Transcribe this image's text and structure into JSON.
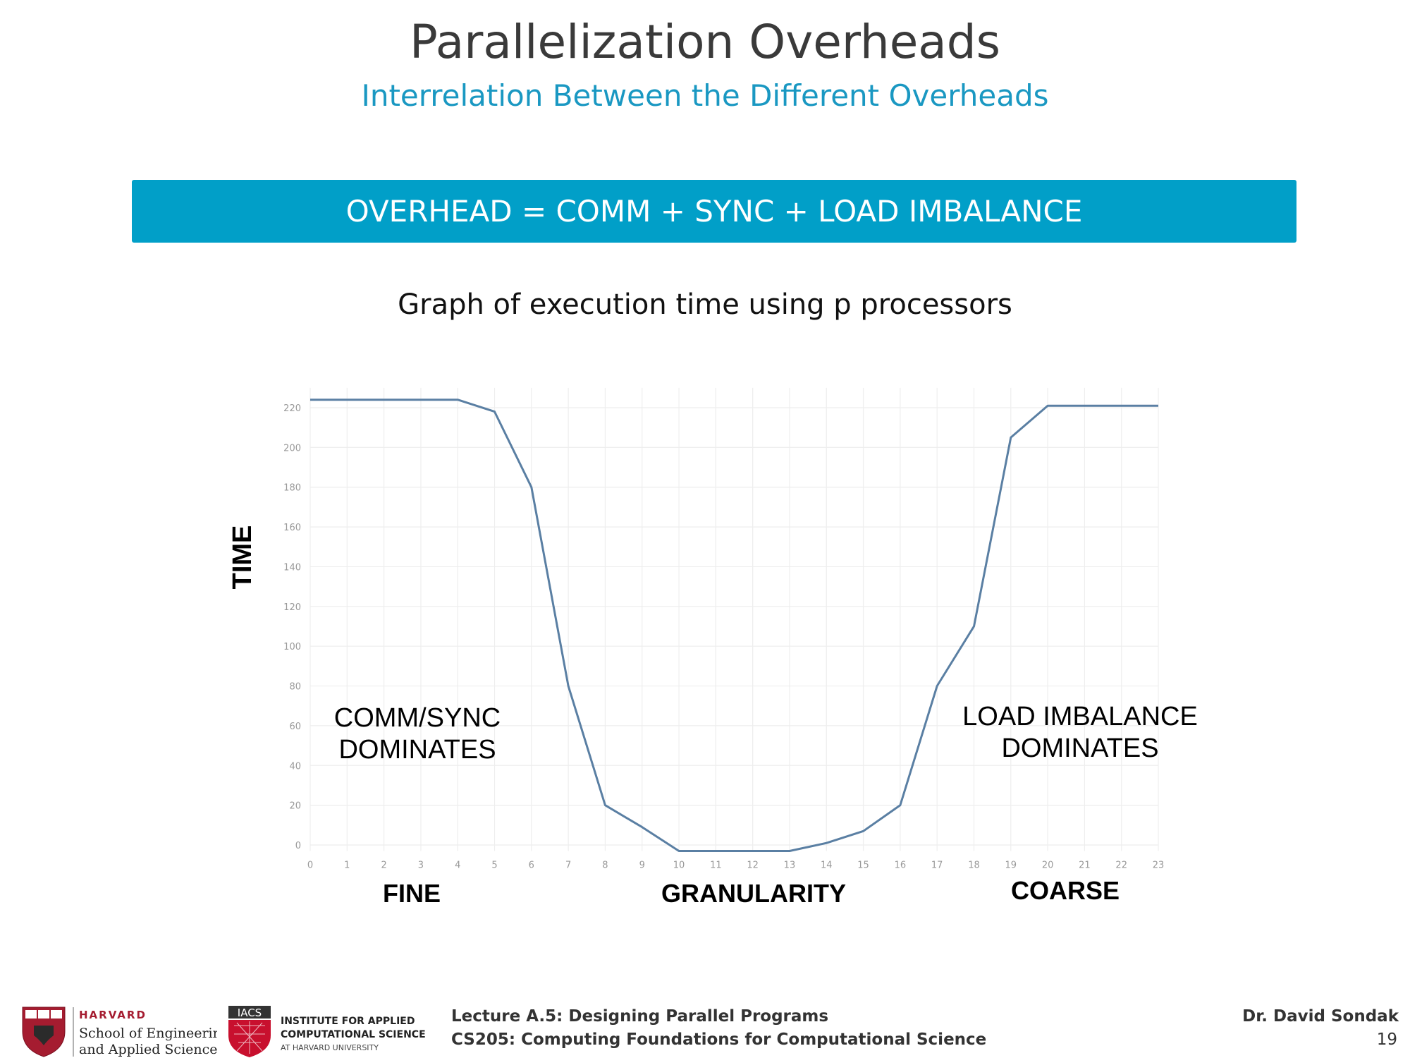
{
  "slide": {
    "title": "Parallelization Overheads",
    "subtitle": "Interrelation Between the Different Overheads",
    "formula": "OVERHEAD = COMM + SYNC + LOAD IMBALANCE",
    "graph_caption": "Graph of execution time using p processors"
  },
  "colors": {
    "title": "#3a3a3a",
    "accent": "#019fc8",
    "line": "#5a7fa3",
    "grid": "#eeeeee",
    "harvard_red": "#a51c30",
    "iacs_red": "#c8102e"
  },
  "chart_data": {
    "type": "line",
    "x": [
      0,
      1,
      2,
      3,
      4,
      5,
      6,
      7,
      8,
      9,
      10,
      11,
      12,
      13,
      14,
      15,
      16,
      17,
      18,
      19,
      20,
      21,
      22,
      23
    ],
    "series": [
      {
        "values": [
          224,
          224,
          224,
          224,
          224,
          218,
          180,
          80,
          20,
          9,
          -3,
          -3,
          -3,
          -3,
          1,
          7,
          20,
          80,
          110,
          205,
          221,
          221,
          221,
          221
        ]
      }
    ],
    "x_ticks": [
      0,
      1,
      2,
      3,
      4,
      5,
      6,
      7,
      8,
      9,
      10,
      11,
      12,
      13,
      14,
      15,
      16,
      17,
      18,
      19,
      20,
      21,
      22,
      23
    ],
    "y_ticks": [
      0,
      20,
      40,
      60,
      80,
      100,
      120,
      140,
      160,
      180,
      200,
      220
    ],
    "xlim": [
      0,
      23
    ],
    "ylim": [
      -3,
      230
    ],
    "ylabel": "TIME",
    "x_labels": {
      "left": "FINE",
      "center": "GRANULARITY",
      "right": "COARSE"
    },
    "annotations": [
      {
        "line1": "COMM/SYNC",
        "line2": "DOMINATES"
      },
      {
        "line1": "LOAD IMBALANCE",
        "line2": "DOMINATES"
      }
    ],
    "grid": true,
    "legend": "none"
  },
  "footer": {
    "harvard_lines": [
      "HARVARD",
      "School of Engineering",
      "and Applied Sciences"
    ],
    "iacs_badge": "IACS",
    "iacs_lines": [
      "INSTITUTE FOR APPLIED",
      "COMPUTATIONAL SCIENCE",
      "AT HARVARD UNIVERSITY"
    ],
    "lecture": "Lecture A.5: Designing Parallel Programs",
    "course": "CS205: Computing Foundations for Computational Science",
    "author": "Dr. David Sondak",
    "page": "19"
  }
}
